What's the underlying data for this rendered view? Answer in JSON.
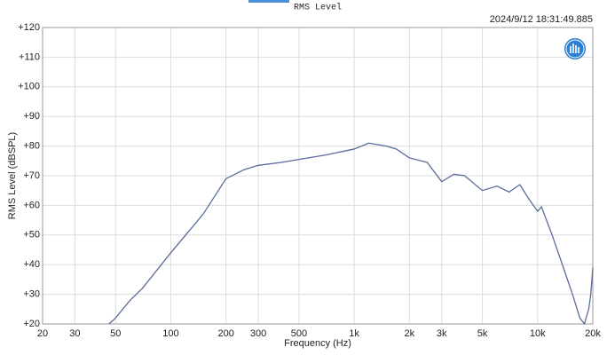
{
  "chart_data": {
    "type": "line",
    "title": "RMS Level",
    "timestamp": "2024/9/12 18:31:49.885",
    "x_label": "Frequency (Hz)",
    "y_label": "RMS Level (dBSPL)",
    "xscale": "log",
    "grid": true,
    "xlim": [
      20,
      20000
    ],
    "ylim": [
      20,
      120
    ],
    "xticks": [
      20,
      30,
      50,
      100,
      200,
      300,
      500,
      {
        "value": 1000,
        "label": "1k"
      },
      {
        "value": 2000,
        "label": "2k"
      },
      {
        "value": 3000,
        "label": "3k"
      },
      {
        "value": 5000,
        "label": "5k"
      },
      {
        "value": 10000,
        "label": "10k"
      },
      {
        "value": 20000,
        "label": "20k"
      }
    ],
    "yticks": [
      {
        "value": 20,
        "label": "+20"
      },
      {
        "value": 30,
        "label": "+30"
      },
      {
        "value": 40,
        "label": "+40"
      },
      {
        "value": 50,
        "label": "+50"
      },
      {
        "value": 60,
        "label": "+60"
      },
      {
        "value": 70,
        "label": "+70"
      },
      {
        "value": 80,
        "label": "+80"
      },
      {
        "value": 90,
        "label": "+90"
      },
      {
        "value": 100,
        "label": "+100"
      },
      {
        "value": 110,
        "label": "+110"
      },
      {
        "value": 120,
        "label": "+120"
      }
    ],
    "x": [
      46,
      50,
      60,
      70,
      100,
      150,
      200,
      250,
      300,
      400,
      500,
      700,
      1000,
      1200,
      1500,
      1700,
      2000,
      2500,
      3000,
      3500,
      4000,
      5000,
      6000,
      7000,
      8000,
      9000,
      10000,
      10500,
      12000,
      14000,
      15500,
      17000,
      18000,
      19000,
      19500,
      20000
    ],
    "series": [
      {
        "color": "#5a6b9c",
        "values": [
          20,
          22,
          28,
          32,
          44,
          57,
          69,
          72,
          73.5,
          74.5,
          75.5,
          77,
          79,
          81,
          80,
          79,
          76,
          74.5,
          68,
          70.5,
          70,
          65,
          66.5,
          64.5,
          67,
          62,
          58,
          59.5,
          50,
          38,
          30,
          22,
          20,
          25,
          30,
          39
        ]
      }
    ]
  }
}
